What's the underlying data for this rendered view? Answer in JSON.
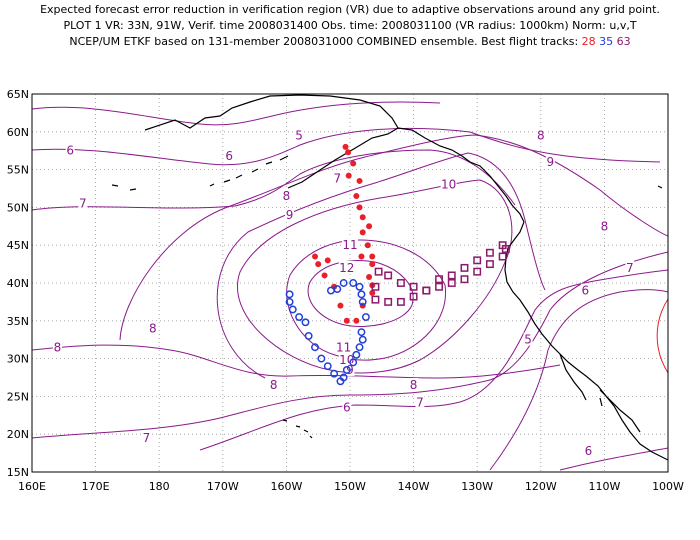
{
  "header": {
    "line1": "Expected forecast error reduction in verification region (VR) due to adaptive observations around any grid point.",
    "line2": "PLOT 1 VR: 33N, 91W, Verif. time 2008031400 Obs. time: 2008031100 (VR radius: 1000km) Norm: u,v,T",
    "line3_prefix": "NCEP/UM ETKF based on 131-member 2008031000 COMBINED ensemble.  Best flight tracks:",
    "track_a": "28",
    "track_b": "35",
    "track_c": "63"
  },
  "colors": {
    "contour": "#8b1a8b",
    "track_28": "#e8202a",
    "track_35": "#2040d8",
    "track_63": "#8b1a6b",
    "verification_circle": "#e8202a",
    "coast": "#000000",
    "grid": "#9a9a9a"
  },
  "map": {
    "lon_range_deg_east": [
      160,
      260
    ],
    "lat_range": [
      15,
      65
    ],
    "x_tick_labels": [
      "160E",
      "170E",
      "180",
      "170W",
      "160W",
      "150W",
      "140W",
      "130W",
      "120W",
      "110W",
      "100W"
    ],
    "y_tick_labels": [
      "15N",
      "20N",
      "25N",
      "30N",
      "35N",
      "40N",
      "45N",
      "50N",
      "55N",
      "60N",
      "65N"
    ],
    "grid": "dotted, every 10 degrees lon and 5 degrees lat",
    "contour_labels": [
      {
        "text": "5",
        "lon": 202,
        "lat": 59.5
      },
      {
        "text": "6",
        "lon": 166,
        "lat": 57.5
      },
      {
        "text": "6",
        "lon": 191,
        "lat": 56.8
      },
      {
        "text": "7",
        "lon": 168,
        "lat": 50.5
      },
      {
        "text": "7",
        "lon": 208,
        "lat": 53.8
      },
      {
        "text": "8",
        "lon": 240,
        "lat": 59.5
      },
      {
        "text": "9",
        "lon": 241.5,
        "lat": 56
      },
      {
        "text": "8",
        "lon": 200,
        "lat": 51.5
      },
      {
        "text": "9",
        "lon": 200.5,
        "lat": 49
      },
      {
        "text": "10",
        "lon": 225.5,
        "lat": 53
      },
      {
        "text": "11",
        "lon": 210,
        "lat": 45
      },
      {
        "text": "12",
        "lon": 209.5,
        "lat": 42
      },
      {
        "text": "8",
        "lon": 250,
        "lat": 47.5
      },
      {
        "text": "7",
        "lon": 254,
        "lat": 42
      },
      {
        "text": "6",
        "lon": 247,
        "lat": 39
      },
      {
        "text": "5",
        "lon": 238,
        "lat": 32.5
      },
      {
        "text": "8",
        "lon": 179,
        "lat": 34
      },
      {
        "text": "8",
        "lon": 164,
        "lat": 31.5
      },
      {
        "text": "11",
        "lon": 209,
        "lat": 31.5
      },
      {
        "text": "10",
        "lon": 209.5,
        "lat": 29.8
      },
      {
        "text": "9",
        "lon": 210,
        "lat": 28.5
      },
      {
        "text": "8",
        "lon": 198,
        "lat": 26.5
      },
      {
        "text": "8",
        "lon": 220,
        "lat": 26.5
      },
      {
        "text": "7",
        "lon": 221,
        "lat": 24.2
      },
      {
        "text": "6",
        "lon": 209.5,
        "lat": 23.5
      },
      {
        "text": "7",
        "lon": 178,
        "lat": 19.5
      },
      {
        "text": "6",
        "lon": 247.5,
        "lat": 17.8
      }
    ],
    "verification_region": {
      "center_lon": 269,
      "center_lat": 33,
      "radius_km": 1000
    },
    "track_28_points": [
      [
        209.3,
        58
      ],
      [
        209.7,
        57.3
      ],
      [
        210.5,
        55.8
      ],
      [
        209.8,
        54.2
      ],
      [
        211.5,
        53.5
      ],
      [
        211,
        51.5
      ],
      [
        211.5,
        50
      ],
      [
        212,
        48.7
      ],
      [
        213,
        47.5
      ],
      [
        212,
        46.7
      ],
      [
        212.8,
        45
      ],
      [
        213.5,
        43.5
      ],
      [
        211.8,
        43.5
      ],
      [
        213.5,
        42.5
      ],
      [
        213,
        40.8
      ],
      [
        213.5,
        39.7
      ],
      [
        213.5,
        38.7
      ],
      [
        212,
        37
      ],
      [
        211,
        35
      ],
      [
        209.5,
        35
      ],
      [
        208.5,
        37
      ],
      [
        207.5,
        39.5
      ],
      [
        206,
        41
      ],
      [
        205,
        42.5
      ],
      [
        204.5,
        43.5
      ],
      [
        206.5,
        43
      ]
    ],
    "track_35_points": [
      [
        200.5,
        38.5
      ],
      [
        200.5,
        37.5
      ],
      [
        201,
        36.5
      ],
      [
        202,
        35.5
      ],
      [
        203,
        34.8
      ],
      [
        203.5,
        33
      ],
      [
        204.5,
        31.5
      ],
      [
        205.5,
        30
      ],
      [
        206.5,
        29
      ],
      [
        207.5,
        28
      ],
      [
        208.5,
        27
      ],
      [
        209,
        27.5
      ],
      [
        209.5,
        28.5
      ],
      [
        210.5,
        29.5
      ],
      [
        211,
        30.5
      ],
      [
        211.5,
        31.5
      ],
      [
        212,
        32.5
      ],
      [
        211.8,
        33.5
      ],
      [
        212.5,
        35.5
      ],
      [
        212,
        37.5
      ],
      [
        211.8,
        38.5
      ],
      [
        211.5,
        39.5
      ],
      [
        210.5,
        40
      ],
      [
        209,
        40
      ],
      [
        208,
        39.2
      ],
      [
        207,
        39
      ]
    ],
    "track_63_points": [
      [
        214,
        39.5
      ],
      [
        214,
        37.8
      ],
      [
        216,
        37.5
      ],
      [
        218,
        37.5
      ],
      [
        220,
        38.2
      ],
      [
        222,
        39
      ],
      [
        224,
        40.5
      ],
      [
        226,
        41
      ],
      [
        228,
        42
      ],
      [
        230,
        43
      ],
      [
        232,
        44
      ],
      [
        234,
        45
      ],
      [
        234.5,
        44.5
      ],
      [
        234,
        43.5
      ],
      [
        232,
        42.5
      ],
      [
        230,
        41.5
      ],
      [
        228,
        40.5
      ],
      [
        226,
        40
      ],
      [
        224,
        39.5
      ],
      [
        222,
        39
      ],
      [
        220,
        39.5
      ],
      [
        218,
        40
      ],
      [
        216,
        41
      ],
      [
        214.5,
        41.5
      ]
    ]
  }
}
